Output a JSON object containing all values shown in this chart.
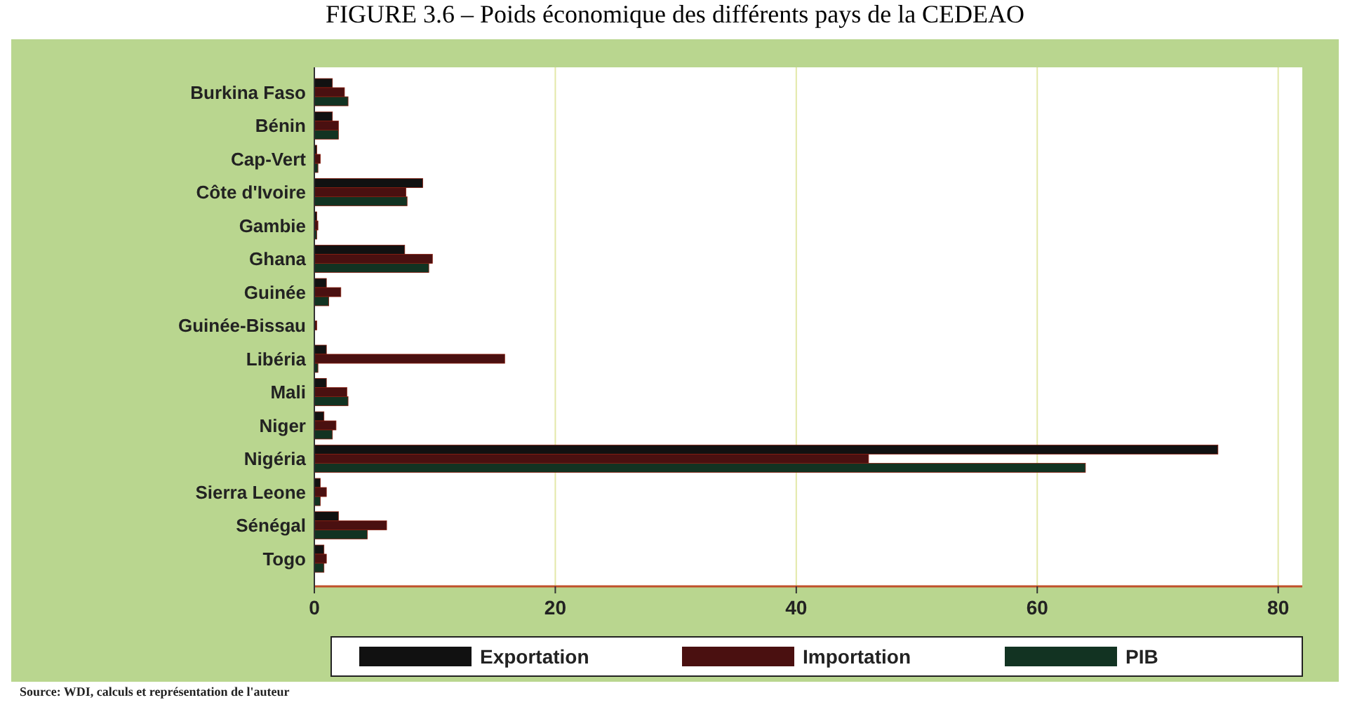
{
  "chart_data": {
    "type": "bar",
    "orientation": "horizontal",
    "title": "FIGURE 3.6 – Poids économique des différents pays de la CEDEAO",
    "categories": [
      "Burkina Faso",
      "Bénin",
      "Cap-Vert",
      "Côte d'Ivoire",
      "Gambie",
      "Ghana",
      "Guinée",
      "Guinée-Bissau",
      "Libéria",
      "Mali",
      "Niger",
      "Nigéria",
      "Sierra Leone",
      "Sénégal",
      "Togo"
    ],
    "series": [
      {
        "name": "Exportation",
        "color": "#111111",
        "values": [
          1.5,
          1.5,
          0.2,
          9,
          0.2,
          7.5,
          1,
          null,
          1,
          1,
          0.8,
          75,
          0.5,
          2,
          0.8
        ]
      },
      {
        "name": "Importation",
        "color": "#4a1010",
        "values": [
          2.5,
          2,
          0.5,
          7.6,
          0.3,
          9.8,
          2.2,
          0.2,
          15.8,
          2.7,
          1.8,
          46,
          1,
          6,
          1
        ]
      },
      {
        "name": "PIB",
        "color": "#123322",
        "values": [
          2.8,
          2,
          0.3,
          7.7,
          0.2,
          9.5,
          1.2,
          null,
          0.3,
          2.8,
          1.5,
          64,
          0.5,
          4.4,
          0.8
        ]
      }
    ],
    "xlim": [
      0,
      82
    ],
    "xticks": [
      0,
      20,
      40,
      60,
      80
    ],
    "grid": "x",
    "legend": "bottom",
    "annotations": [
      "Source: WDI, calculs et représentation de l'auteur"
    ]
  }
}
